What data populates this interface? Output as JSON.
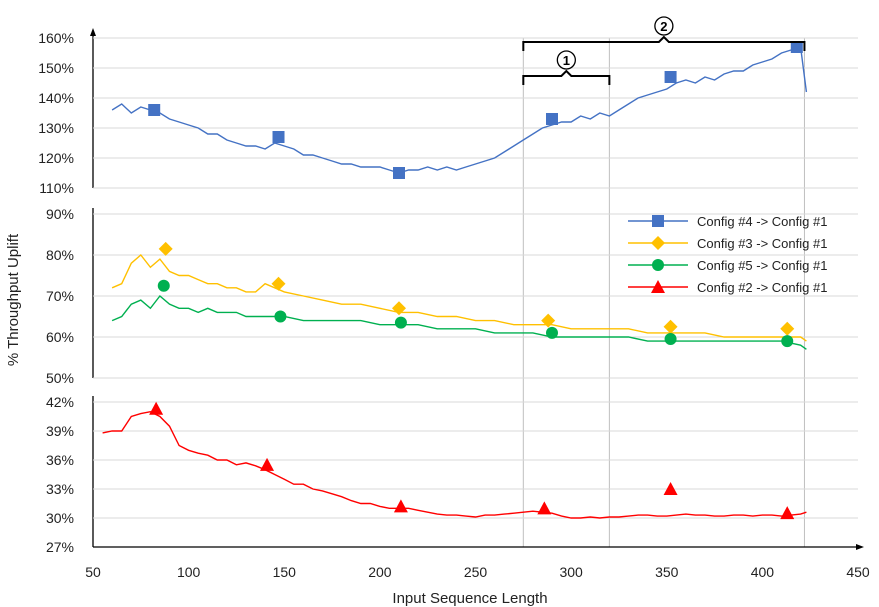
{
  "chart_data": {
    "type": "line",
    "xlabel": "Input Sequence Length",
    "ylabel": "% Throughput Uplift",
    "x_ticks": [
      "50",
      "100",
      "150",
      "200",
      "250",
      "300",
      "350",
      "400",
      "450"
    ],
    "xlim": [
      50,
      450
    ],
    "annotations": [
      {
        "label": "1",
        "x_start": 275,
        "x_end": 320
      },
      {
        "label": "2",
        "x_start": 275,
        "x_end": 422
      }
    ],
    "panels": [
      {
        "ylim": [
          110,
          160
        ],
        "y_ticks": [
          "110%",
          "120%",
          "130%",
          "140%",
          "150%",
          "160%"
        ],
        "series": [
          {
            "name": "Config #4 -> Config #1",
            "color": "#4472C4",
            "marker": "square",
            "x": [
              60,
              65,
              70,
              75,
              80,
              85,
              90,
              95,
              100,
              105,
              110,
              115,
              120,
              125,
              130,
              135,
              140,
              145,
              150,
              155,
              160,
              165,
              170,
              175,
              180,
              185,
              190,
              195,
              200,
              205,
              210,
              215,
              220,
              225,
              230,
              235,
              240,
              245,
              250,
              255,
              260,
              265,
              270,
              275,
              280,
              285,
              290,
              295,
              300,
              305,
              310,
              315,
              320,
              325,
              330,
              335,
              340,
              345,
              350,
              355,
              360,
              365,
              370,
              375,
              380,
              385,
              390,
              395,
              400,
              405,
              410,
              415,
              420,
              423
            ],
            "y": [
              136,
              138,
              135,
              137,
              136,
              135,
              133,
              132,
              131,
              130,
              128,
              128,
              126,
              125,
              124,
              124,
              123,
              125,
              124,
              123,
              121,
              121,
              120,
              119,
              118,
              118,
              117,
              117,
              117,
              116,
              115,
              116,
              116,
              117,
              116,
              117,
              116,
              117,
              118,
              119,
              120,
              122,
              124,
              126,
              128,
              130,
              131,
              132,
              132,
              134,
              133,
              135,
              134,
              136,
              138,
              140,
              141,
              142,
              143,
              145,
              146,
              145,
              147,
              146,
              148,
              149,
              149,
              151,
              152,
              153,
              155,
              156,
              157,
              142
            ],
            "markers_x": [
              82,
              147,
              210,
              290,
              352,
              418
            ],
            "markers_y": [
              136,
              127,
              115,
              133,
              147,
              157
            ]
          }
        ]
      },
      {
        "ylim": [
          50,
          90
        ],
        "y_ticks": [
          "50%",
          "60%",
          "70%",
          "80%",
          "90%"
        ],
        "series": [
          {
            "name": "Config #3 -> Config #1",
            "color": "#FFC000",
            "marker": "diamond",
            "x": [
              60,
              65,
              70,
              75,
              80,
              85,
              90,
              95,
              100,
              105,
              110,
              115,
              120,
              125,
              130,
              135,
              140,
              145,
              150,
              160,
              170,
              180,
              190,
              200,
              210,
              220,
              230,
              240,
              250,
              260,
              270,
              280,
              290,
              300,
              310,
              320,
              330,
              340,
              350,
              360,
              370,
              380,
              390,
              400,
              410,
              420,
              423
            ],
            "y": [
              72,
              73,
              78,
              80,
              77,
              79,
              76,
              75,
              75,
              74,
              73,
              73,
              72,
              72,
              71,
              71,
              73,
              72,
              71,
              70,
              69,
              68,
              68,
              67,
              66,
              66,
              65,
              65,
              64,
              64,
              63,
              63,
              63,
              62,
              62,
              62,
              62,
              61,
              61,
              61,
              61,
              60,
              60,
              60,
              60,
              60,
              59
            ],
            "markers_x": [
              88,
              147,
              210,
              288,
              352,
              413
            ],
            "markers_y": [
              81.5,
              73,
              67,
              64,
              62.5,
              62
            ]
          },
          {
            "name": "Config #5 -> Config #1",
            "color": "#00B050",
            "marker": "circle",
            "x": [
              60,
              65,
              70,
              75,
              80,
              85,
              90,
              95,
              100,
              105,
              110,
              115,
              120,
              125,
              130,
              135,
              140,
              145,
              150,
              160,
              170,
              180,
              190,
              200,
              210,
              220,
              230,
              240,
              250,
              260,
              270,
              280,
              290,
              300,
              310,
              320,
              330,
              340,
              350,
              360,
              370,
              380,
              390,
              400,
              410,
              420,
              423
            ],
            "y": [
              64,
              65,
              68,
              69,
              67,
              70,
              68,
              67,
              67,
              66,
              67,
              66,
              66,
              66,
              65,
              65,
              65,
              65,
              65,
              64,
              64,
              64,
              64,
              63,
              63,
              63,
              62,
              62,
              62,
              61,
              61,
              61,
              60,
              60,
              60,
              60,
              60,
              59,
              59,
              59,
              59,
              59,
              59,
              59,
              59,
              58,
              57
            ],
            "markers_x": [
              87,
              148,
              211,
              290,
              352,
              413
            ],
            "markers_y": [
              72.5,
              65,
              63.5,
              61,
              59.5,
              59
            ]
          }
        ]
      },
      {
        "ylim": [
          27,
          42
        ],
        "y_ticks": [
          "27%",
          "30%",
          "33%",
          "36%",
          "39%",
          "42%"
        ],
        "series": [
          {
            "name": "Config #2 -> Config #1",
            "color": "#FF0000",
            "marker": "triangle",
            "x": [
              55,
              60,
              65,
              70,
              75,
              80,
              85,
              90,
              95,
              100,
              105,
              110,
              115,
              120,
              125,
              130,
              135,
              140,
              145,
              150,
              155,
              160,
              165,
              170,
              175,
              180,
              185,
              190,
              195,
              200,
              205,
              210,
              215,
              220,
              225,
              230,
              235,
              240,
              245,
              250,
              255,
              260,
              265,
              270,
              275,
              280,
              285,
              290,
              295,
              300,
              305,
              310,
              315,
              320,
              325,
              330,
              335,
              340,
              345,
              350,
              355,
              360,
              365,
              370,
              375,
              380,
              385,
              390,
              395,
              400,
              405,
              410,
              415,
              420,
              423
            ],
            "y": [
              38.8,
              39,
              39,
              40.5,
              40.8,
              41,
              40.5,
              39.5,
              37.5,
              37,
              36.7,
              36.5,
              36,
              36,
              35.5,
              35.7,
              35.4,
              35,
              34.5,
              34,
              33.5,
              33.5,
              33,
              32.8,
              32.5,
              32.2,
              31.8,
              31.5,
              31.5,
              31.2,
              31,
              31,
              31,
              30.8,
              30.6,
              30.4,
              30.3,
              30.3,
              30.2,
              30.1,
              30.3,
              30.3,
              30.4,
              30.5,
              30.6,
              30.7,
              30.6,
              30.5,
              30.2,
              30,
              30,
              30.1,
              30,
              30.1,
              30.1,
              30.2,
              30.3,
              30.3,
              30.2,
              30.2,
              30.3,
              30.4,
              30.3,
              30.3,
              30.2,
              30.2,
              30.3,
              30.3,
              30.2,
              30.3,
              30.3,
              30.2,
              30.3,
              30.4,
              30.6
            ],
            "markers_x": [
              83,
              141,
              211,
              286,
              352,
              413
            ],
            "markers_y": [
              41.3,
              35.5,
              31.2,
              31,
              33,
              30.5
            ]
          }
        ]
      }
    ],
    "legend_position": "right-middle"
  }
}
